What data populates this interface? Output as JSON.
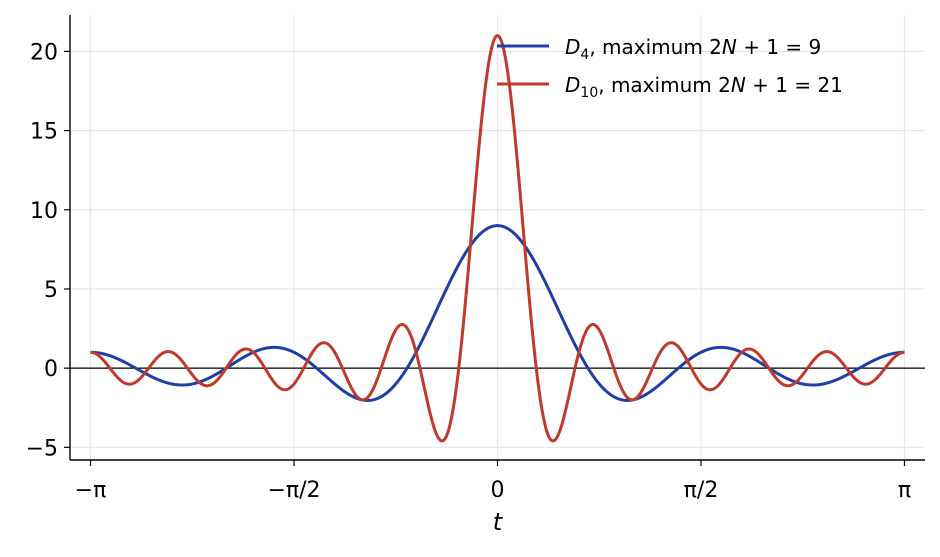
{
  "chart_data": {
    "type": "line",
    "title": "",
    "xlabel": "t",
    "ylabel": "",
    "xlim": [
      -3.3,
      3.3
    ],
    "ylim": [
      -5.8,
      22.3
    ],
    "grid": true,
    "legend_position": "top-right",
    "x_ticks": [
      {
        "value": -3.14159265,
        "label": "−π"
      },
      {
        "value": -1.57079633,
        "label": "−π/2"
      },
      {
        "value": 0,
        "label": "0"
      },
      {
        "value": 1.57079633,
        "label": "π/2"
      },
      {
        "value": 3.14159265,
        "label": "π"
      }
    ],
    "y_ticks": [
      {
        "value": -5,
        "label": "−5"
      },
      {
        "value": 0,
        "label": "0"
      },
      {
        "value": 5,
        "label": "5"
      },
      {
        "value": 10,
        "label": "10"
      },
      {
        "value": 15,
        "label": "15"
      },
      {
        "value": 20,
        "label": "20"
      }
    ],
    "reference_line_y": 0,
    "series": [
      {
        "name": "D_4, maximum 2N+1 = 9",
        "legend": {
          "symbol": "D",
          "subscript": "4",
          "text": ", maximum ",
          "formula": "2N + 1 = 9"
        },
        "color": "#1f3fa8",
        "function": "dirichlet",
        "N": 4,
        "x_range": [
          -3.14159265,
          3.14159265
        ],
        "key_points": {
          "x": [
            -3.14159265,
            0,
            3.14159265
          ],
          "y": [
            1,
            9,
            1
          ]
        }
      },
      {
        "name": "D_10, maximum 2N+1 = 21",
        "legend": {
          "symbol": "D",
          "subscript": "10",
          "text": ", maximum ",
          "formula": "2N + 1 = 21"
        },
        "color": "#c0392b",
        "function": "dirichlet",
        "N": 10,
        "x_range": [
          -3.14159265,
          3.14159265
        ],
        "key_points": {
          "x": [
            -3.14159265,
            0,
            3.14159265
          ],
          "y": [
            1,
            21,
            1
          ]
        }
      }
    ]
  }
}
